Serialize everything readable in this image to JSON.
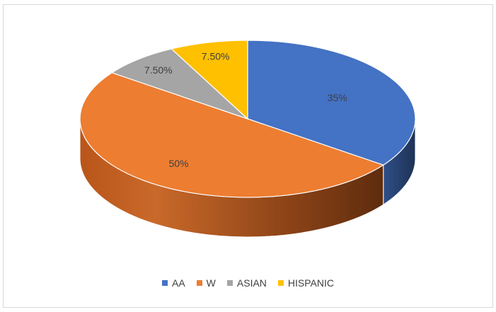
{
  "chart_data": {
    "type": "pie",
    "three_d": true,
    "categories": [
      "AA",
      "W",
      "ASIAN",
      "HISPANIC"
    ],
    "values": [
      35,
      50,
      7.5,
      7.5
    ],
    "data_labels": [
      "35%",
      "50%",
      "7.50%",
      "7.50%"
    ],
    "colors": [
      "#4472C4",
      "#ED7D31",
      "#A5A5A5",
      "#FFC000"
    ],
    "legend_position": "bottom"
  }
}
